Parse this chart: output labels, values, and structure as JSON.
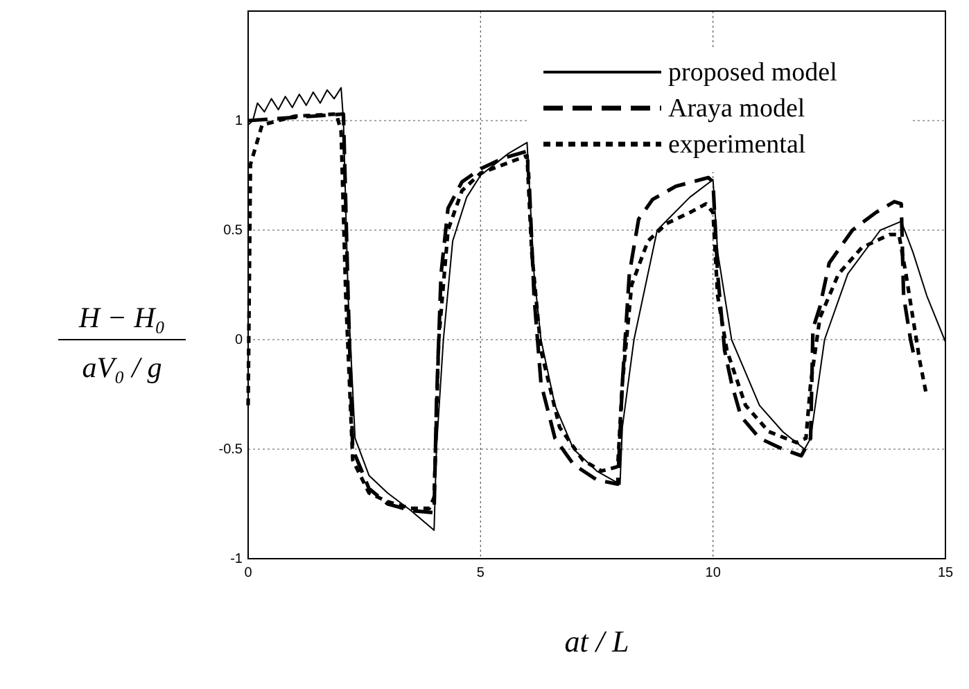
{
  "chart_data": {
    "type": "line",
    "xlabel": "at / L",
    "ylabel": "H − H₀\naV₀ / g",
    "xlim": [
      0,
      15
    ],
    "ylim": [
      -1,
      1.5
    ],
    "xticks": [
      0,
      5,
      10,
      15
    ],
    "yticks": [
      -1,
      -0.5,
      0,
      0.5,
      1
    ],
    "grid": true,
    "legend": "top right",
    "series": [
      {
        "name": "proposed model",
        "color": "#000000",
        "line_style": "solid",
        "x": [
          0,
          0.1,
          0.2,
          0.35,
          0.5,
          0.65,
          0.8,
          0.95,
          1.1,
          1.25,
          1.4,
          1.55,
          1.7,
          1.85,
          2.0,
          2.05,
          2.15,
          2.3,
          2.6,
          3,
          3.5,
          4.0,
          4.05,
          4.2,
          4.4,
          4.7,
          5,
          5.6,
          6.0,
          6.05,
          6.15,
          6.3,
          6.6,
          7,
          7.5,
          8.0,
          8.05,
          8.3,
          8.8,
          9.5,
          10.0,
          10.1,
          10.4,
          11,
          11.5,
          11.97,
          12.1,
          12.4,
          12.9,
          13.6,
          14.05,
          14.3,
          14.6,
          15
        ],
        "values": [
          0.98,
          1.0,
          1.08,
          1.04,
          1.1,
          1.05,
          1.11,
          1.06,
          1.12,
          1.07,
          1.13,
          1.08,
          1.14,
          1.1,
          1.15,
          1.0,
          0.2,
          -0.45,
          -0.62,
          -0.7,
          -0.78,
          -0.87,
          -0.5,
          0,
          0.45,
          0.65,
          0.75,
          0.85,
          0.9,
          0.7,
          0.3,
          0,
          -0.3,
          -0.5,
          -0.6,
          -0.66,
          -0.4,
          0,
          0.5,
          0.65,
          0.73,
          0.4,
          0,
          -0.3,
          -0.42,
          -0.5,
          -0.45,
          0,
          0.3,
          0.5,
          0.54,
          0.4,
          0.2,
          -0.01
        ]
      },
      {
        "name": "Araya model",
        "color": "#000000",
        "line_style": "dashed",
        "x": [
          0,
          2.05,
          2.15,
          2.25,
          2.6,
          3,
          3.5,
          4.0,
          4.05,
          4.15,
          4.3,
          4.6,
          5.0,
          5.5,
          6.0,
          6.05,
          6.15,
          6.3,
          6.6,
          7,
          7.5,
          7.95,
          8.05,
          8.2,
          8.4,
          8.7,
          9.2,
          9.9,
          10.0,
          10.1,
          10.25,
          10.4,
          10.6,
          11,
          11.5,
          11.9,
          12.1,
          12.15,
          12.3,
          12.5,
          13,
          13.5,
          13.9,
          14.05,
          14.1,
          14.25,
          14.35
        ],
        "values": [
          1,
          1.03,
          0.2,
          -0.5,
          -0.68,
          -0.75,
          -0.78,
          -0.79,
          -0.3,
          0.3,
          0.6,
          0.72,
          0.78,
          0.83,
          0.86,
          0.7,
          0.2,
          -0.2,
          -0.45,
          -0.57,
          -0.64,
          -0.66,
          -0.2,
          0.3,
          0.55,
          0.64,
          0.7,
          0.74,
          0.72,
          0.3,
          -0.05,
          -0.2,
          -0.35,
          -0.45,
          -0.5,
          -0.53,
          -0.45,
          0.05,
          0.15,
          0.35,
          0.5,
          0.58,
          0.63,
          0.62,
          0.2,
          0,
          -0.1
        ]
      },
      {
        "name": "experimental",
        "color": "#000000",
        "line_style": "dotted",
        "x": [
          0,
          0.05,
          0.3,
          1,
          1.9,
          2.0,
          2.1,
          2.25,
          2.6,
          3,
          3.5,
          3.9,
          4.0,
          4.1,
          4.3,
          4.6,
          5,
          5.5,
          6.0,
          6.1,
          6.3,
          6.7,
          7.2,
          7.6,
          7.95,
          8.05,
          8.25,
          8.6,
          9.0,
          9.5,
          9.85,
          10.0,
          10.1,
          10.3,
          10.7,
          11.2,
          11.8,
          12.0,
          12.1,
          12.3,
          12.7,
          13.2,
          13.8,
          14.0,
          14.15,
          14.3,
          14.45,
          14.58
        ],
        "values": [
          -0.3,
          0.8,
          0.98,
          1.02,
          1.03,
          0.95,
          0.2,
          -0.55,
          -0.7,
          -0.74,
          -0.77,
          -0.77,
          -0.72,
          0,
          0.5,
          0.68,
          0.76,
          0.8,
          0.84,
          0.4,
          -0.05,
          -0.4,
          -0.55,
          -0.6,
          -0.58,
          -0.2,
          0.25,
          0.45,
          0.53,
          0.58,
          0.62,
          0.58,
          0.2,
          -0.05,
          -0.3,
          -0.42,
          -0.47,
          -0.45,
          -0.2,
          0.1,
          0.3,
          0.42,
          0.48,
          0.48,
          0.3,
          0.1,
          -0.1,
          -0.24
        ]
      }
    ]
  }
}
